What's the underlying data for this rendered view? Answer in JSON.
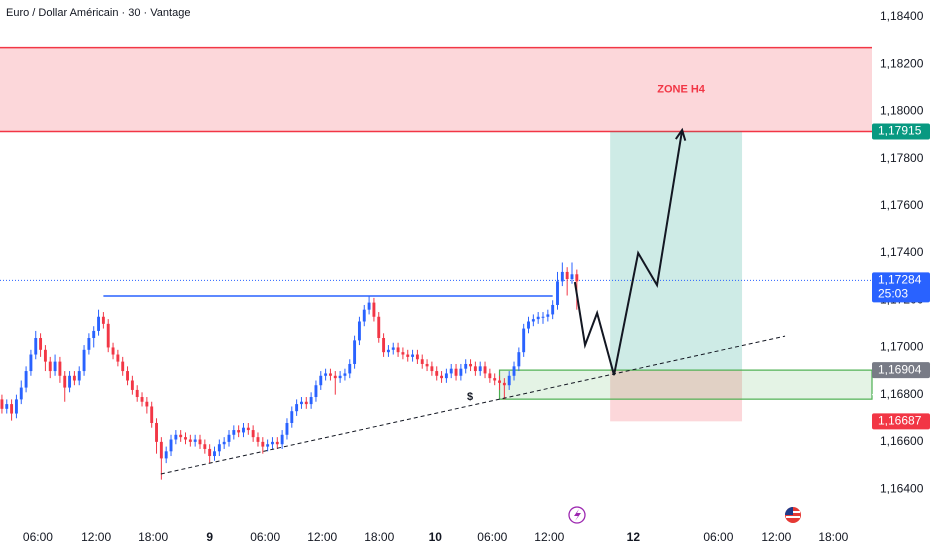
{
  "chart_data": {
    "type": "candlestick",
    "title": "Euro / Dollar Américain · 30 · Vantage",
    "up_color": "#2962ff",
    "down_color": "#f23645",
    "xlim": [
      -0.4,
      180.1
    ],
    "ylim": [
      1.16269,
      1.18472
    ],
    "yticks": [
      {
        "value": 1.164,
        "label": "1,16400"
      },
      {
        "value": 1.166,
        "label": "1,16600"
      },
      {
        "value": 1.168,
        "label": "1,16800"
      },
      {
        "value": 1.17,
        "label": "1,17000"
      },
      {
        "value": 1.172,
        "label": "1,17200"
      },
      {
        "value": 1.174,
        "label": "1,17400"
      },
      {
        "value": 1.176,
        "label": "1,17600"
      },
      {
        "value": 1.178,
        "label": "1,17800"
      },
      {
        "value": 1.18,
        "label": "1,18000"
      },
      {
        "value": 1.182,
        "label": "1,18200"
      },
      {
        "value": 1.184,
        "label": "1,18400"
      }
    ],
    "xticks": [
      {
        "value": 7.45,
        "label": "06:00"
      },
      {
        "value": 19.5,
        "label": "12:00"
      },
      {
        "value": 31.3,
        "label": "18:00"
      },
      {
        "value": 43.0,
        "label": "9"
      },
      {
        "value": 54.5,
        "label": "06:00"
      },
      {
        "value": 66.3,
        "label": "12:00"
      },
      {
        "value": 78.1,
        "label": "18:00"
      },
      {
        "value": 89.7,
        "label": "10"
      },
      {
        "value": 101.5,
        "label": "06:00"
      },
      {
        "value": 113.3,
        "label": "12:00"
      },
      {
        "value": 130.7,
        "label": "12"
      },
      {
        "value": 148.3,
        "label": "06:00"
      },
      {
        "value": 160.3,
        "label": "12:00"
      },
      {
        "value": 172.1,
        "label": "18:00"
      }
    ],
    "ohlc": [
      [
        1.1678,
        1.168,
        1.1672,
        1.1674
      ],
      [
        1.1674,
        1.1678,
        1.1672,
        1.1676
      ],
      [
        1.1676,
        1.1678,
        1.1669,
        1.1672
      ],
      [
        1.1672,
        1.168,
        1.167,
        1.1678
      ],
      [
        1.1678,
        1.1686,
        1.1676,
        1.1683
      ],
      [
        1.1683,
        1.1692,
        1.1681,
        1.169
      ],
      [
        1.169,
        1.1699,
        1.1688,
        1.1697
      ],
      [
        1.1697,
        1.1707,
        1.1695,
        1.1704
      ],
      [
        1.1704,
        1.1706,
        1.1696,
        1.1699
      ],
      [
        1.1699,
        1.1701,
        1.169,
        1.1694
      ],
      [
        1.1694,
        1.1696,
        1.1687,
        1.169
      ],
      [
        1.169,
        1.1697,
        1.1688,
        1.1694
      ],
      [
        1.1694,
        1.1696,
        1.1685,
        1.1688
      ],
      [
        1.1688,
        1.169,
        1.1677,
        1.1683
      ],
      [
        1.1683,
        1.169,
        1.1681,
        1.1688
      ],
      [
        1.1688,
        1.169,
        1.1684,
        1.1686
      ],
      [
        1.1686,
        1.1692,
        1.1684,
        1.169
      ],
      [
        1.169,
        1.1701,
        1.1688,
        1.1699
      ],
      [
        1.1699,
        1.1706,
        1.1697,
        1.1704
      ],
      [
        1.1704,
        1.1709,
        1.17,
        1.1707
      ],
      [
        1.1707,
        1.1716,
        1.1705,
        1.1713
      ],
      [
        1.1713,
        1.1715,
        1.1708,
        1.171
      ],
      [
        1.171,
        1.1712,
        1.1698,
        1.17
      ],
      [
        1.17,
        1.1702,
        1.1695,
        1.1697
      ],
      [
        1.1697,
        1.1699,
        1.1692,
        1.1694
      ],
      [
        1.1694,
        1.1696,
        1.1688,
        1.169
      ],
      [
        1.169,
        1.1692,
        1.1684,
        1.1686
      ],
      [
        1.1686,
        1.1688,
        1.168,
        1.1682
      ],
      [
        1.1682,
        1.1684,
        1.1677,
        1.1679
      ],
      [
        1.1679,
        1.1681,
        1.1675,
        1.1677
      ],
      [
        1.1677,
        1.1679,
        1.1672,
        1.1675
      ],
      [
        1.1675,
        1.1677,
        1.1666,
        1.1668
      ],
      [
        1.1668,
        1.167,
        1.1655,
        1.166
      ],
      [
        1.166,
        1.1662,
        1.1644,
        1.1653
      ],
      [
        1.1653,
        1.1658,
        1.1651,
        1.1656
      ],
      [
        1.1656,
        1.1663,
        1.1654,
        1.1661
      ],
      [
        1.1661,
        1.1665,
        1.1659,
        1.1663
      ],
      [
        1.1663,
        1.1665,
        1.166,
        1.1662
      ],
      [
        1.1662,
        1.1664,
        1.1659,
        1.1661
      ],
      [
        1.1661,
        1.1663,
        1.1658,
        1.166
      ],
      [
        1.166,
        1.1663,
        1.1658,
        1.1661
      ],
      [
        1.1661,
        1.1663,
        1.1657,
        1.1659
      ],
      [
        1.1659,
        1.1661,
        1.1655,
        1.1657
      ],
      [
        1.1657,
        1.1659,
        1.1651,
        1.1654
      ],
      [
        1.1654,
        1.1658,
        1.1652,
        1.1656
      ],
      [
        1.1656,
        1.1661,
        1.1654,
        1.1659
      ],
      [
        1.1659,
        1.1662,
        1.1657,
        1.166
      ],
      [
        1.166,
        1.1665,
        1.1658,
        1.1663
      ],
      [
        1.1663,
        1.1667,
        1.1661,
        1.1665
      ],
      [
        1.1665,
        1.1667,
        1.1662,
        1.1664
      ],
      [
        1.1664,
        1.1668,
        1.1662,
        1.1666
      ],
      [
        1.1666,
        1.1668,
        1.1663,
        1.1665
      ],
      [
        1.1665,
        1.1667,
        1.166,
        1.1662
      ],
      [
        1.1662,
        1.1664,
        1.1658,
        1.166
      ],
      [
        1.166,
        1.1662,
        1.1655,
        1.1658
      ],
      [
        1.1658,
        1.1661,
        1.1656,
        1.1659
      ],
      [
        1.1659,
        1.1662,
        1.1657,
        1.166
      ],
      [
        1.166,
        1.1662,
        1.1657,
        1.1659
      ],
      [
        1.1659,
        1.1665,
        1.1657,
        1.1663
      ],
      [
        1.1663,
        1.167,
        1.1661,
        1.1668
      ],
      [
        1.1668,
        1.1675,
        1.1666,
        1.1673
      ],
      [
        1.1673,
        1.1678,
        1.1671,
        1.1676
      ],
      [
        1.1676,
        1.1679,
        1.1674,
        1.1677
      ],
      [
        1.1677,
        1.1679,
        1.1674,
        1.1676
      ],
      [
        1.1676,
        1.1681,
        1.1674,
        1.1679
      ],
      [
        1.1679,
        1.1686,
        1.1677,
        1.1684
      ],
      [
        1.1684,
        1.169,
        1.1682,
        1.1688
      ],
      [
        1.1688,
        1.1691,
        1.1686,
        1.1689
      ],
      [
        1.1689,
        1.1691,
        1.1686,
        1.1688
      ],
      [
        1.1688,
        1.169,
        1.168,
        1.1687
      ],
      [
        1.1687,
        1.169,
        1.1685,
        1.1688
      ],
      [
        1.1688,
        1.1691,
        1.1686,
        1.1689
      ],
      [
        1.1689,
        1.1695,
        1.1687,
        1.1693
      ],
      [
        1.1693,
        1.1705,
        1.1691,
        1.1703
      ],
      [
        1.1703,
        1.1713,
        1.1701,
        1.1711
      ],
      [
        1.1711,
        1.1718,
        1.1709,
        1.1716
      ],
      [
        1.1716,
        1.1722,
        1.1714,
        1.1719
      ],
      [
        1.1719,
        1.1721,
        1.1711,
        1.1713
      ],
      [
        1.1713,
        1.1715,
        1.1702,
        1.1704
      ],
      [
        1.1704,
        1.1706,
        1.1696,
        1.1698
      ],
      [
        1.1698,
        1.1701,
        1.1696,
        1.1699
      ],
      [
        1.1699,
        1.1702,
        1.1697,
        1.17
      ],
      [
        1.17,
        1.1702,
        1.1696,
        1.1698
      ],
      [
        1.1698,
        1.17,
        1.1695,
        1.1697
      ],
      [
        1.1697,
        1.1699,
        1.1694,
        1.1696
      ],
      [
        1.1696,
        1.1699,
        1.1694,
        1.1697
      ],
      [
        1.1697,
        1.1699,
        1.1693,
        1.1695
      ],
      [
        1.1695,
        1.1697,
        1.1691,
        1.1693
      ],
      [
        1.1693,
        1.1695,
        1.169,
        1.1692
      ],
      [
        1.1692,
        1.1694,
        1.1688,
        1.169
      ],
      [
        1.169,
        1.1692,
        1.1686,
        1.1688
      ],
      [
        1.1688,
        1.169,
        1.1685,
        1.1687
      ],
      [
        1.1687,
        1.1691,
        1.1685,
        1.1689
      ],
      [
        1.1689,
        1.1693,
        1.1687,
        1.1691
      ],
      [
        1.1691,
        1.1693,
        1.1686,
        1.1688
      ],
      [
        1.1688,
        1.1693,
        1.1686,
        1.1691
      ],
      [
        1.1691,
        1.1695,
        1.1689,
        1.1693
      ],
      [
        1.1693,
        1.1695,
        1.169,
        1.1692
      ],
      [
        1.1692,
        1.1694,
        1.1688,
        1.169
      ],
      [
        1.169,
        1.1694,
        1.1688,
        1.1692
      ],
      [
        1.1692,
        1.1694,
        1.1687,
        1.1689
      ],
      [
        1.1689,
        1.1691,
        1.1685,
        1.1687
      ],
      [
        1.1687,
        1.1689,
        1.1684,
        1.1686
      ],
      [
        1.1686,
        1.1688,
        1.1682,
        1.1685
      ],
      [
        1.1685,
        1.1687,
        1.1678,
        1.1684
      ],
      [
        1.1684,
        1.169,
        1.1682,
        1.1688
      ],
      [
        1.1688,
        1.1694,
        1.1686,
        1.1692
      ],
      [
        1.1692,
        1.17,
        1.169,
        1.1698
      ],
      [
        1.1698,
        1.171,
        1.1696,
        1.1708
      ],
      [
        1.1708,
        1.1713,
        1.1706,
        1.1711
      ],
      [
        1.1711,
        1.1714,
        1.1709,
        1.1712
      ],
      [
        1.1712,
        1.1715,
        1.171,
        1.1713
      ],
      [
        1.1713,
        1.1715,
        1.171,
        1.1713
      ],
      [
        1.1713,
        1.1716,
        1.1711,
        1.1714
      ],
      [
        1.1714,
        1.172,
        1.1712,
        1.1718
      ],
      [
        1.1718,
        1.1732,
        1.1716,
        1.1728
      ],
      [
        1.1728,
        1.1736,
        1.1726,
        1.1732
      ],
      [
        1.1732,
        1.1734,
        1.1722,
        1.1729
      ],
      [
        1.1729,
        1.1736,
        1.1727,
        1.1731
      ],
      [
        1.1731,
        1.1733,
        1.1716,
        1.1728
      ]
    ],
    "zone": {
      "label": "ZONE H4",
      "top": 1.1827,
      "bottom": 1.17915,
      "color": "#f23645"
    },
    "resistance": {
      "price": 1.17218,
      "from": 21,
      "to": 114,
      "color": "#2962ff"
    },
    "support_box": {
      "top": 1.16904,
      "bottom": 1.16781,
      "from": 103,
      "to": 180.1,
      "color": "#4caf50"
    },
    "position": {
      "from": 125.9,
      "to": 153.2,
      "entry": 1.16904,
      "target": 1.17915,
      "stop": 1.16687
    },
    "trendline": {
      "x": [
        32.9,
        162.1
      ],
      "y": [
        1.16464,
        1.17048
      ]
    },
    "projection": {
      "x": [
        118.6,
        120.7,
        123.2,
        126.7,
        131.7,
        135.6,
        140.8
      ],
      "y": [
        1.17277,
        1.1701,
        1.17146,
        1.16883,
        1.174,
        1.17264,
        1.17921
      ]
    },
    "marker": {
      "label": "$",
      "x": 96.9,
      "y": 1.1679
    },
    "price_labels": [
      {
        "value": 1.17915,
        "label": "1,17915",
        "color": "#089981"
      },
      {
        "value": 1.17284,
        "label": "1,17284",
        "color": "#2962ff",
        "sub": "25:03"
      },
      {
        "value": 1.16904,
        "label": "1,16904",
        "color": "#787b86"
      },
      {
        "value": 1.16687,
        "label": "1,16687",
        "color": "#f23645"
      }
    ]
  }
}
